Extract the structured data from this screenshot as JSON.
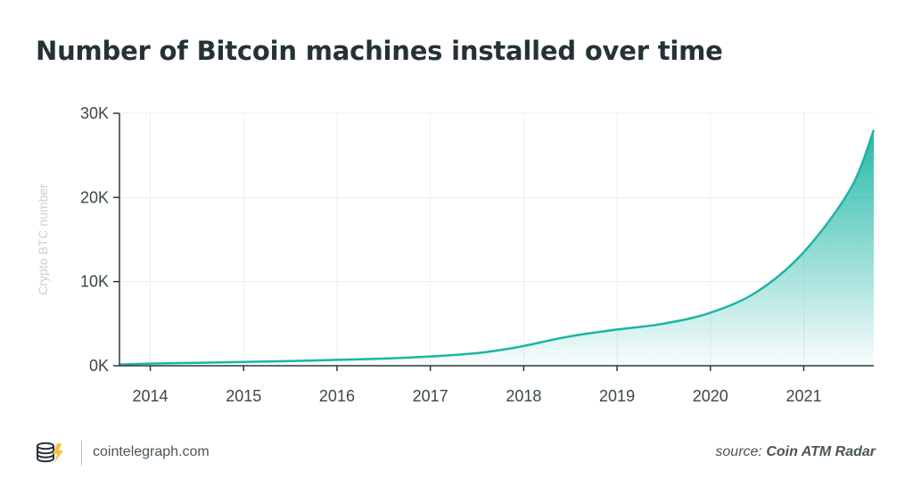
{
  "chart_data": {
    "type": "area",
    "title": "Number of Bitcoin machines installed over time",
    "ylabel": "Crypto BTC number",
    "xlabel": "",
    "x_ticks": [
      "2014",
      "2015",
      "2016",
      "2017",
      "2018",
      "2019",
      "2020",
      "2021"
    ],
    "y_ticks": [
      "0K",
      "10K",
      "20K",
      "30K"
    ],
    "xlim": [
      2013.67,
      2021.75
    ],
    "ylim": [
      0,
      30000
    ],
    "grid": true,
    "series": [
      {
        "color": "#1bb5a4",
        "x": [
          2013.67,
          2014.0,
          2014.5,
          2015.0,
          2015.5,
          2016.0,
          2016.5,
          2017.0,
          2017.5,
          2017.83,
          2018.0,
          2018.5,
          2019.0,
          2019.5,
          2020.0,
          2020.5,
          2021.0,
          2021.5,
          2021.75
        ],
        "y": [
          150,
          250,
          350,
          450,
          550,
          700,
          850,
          1100,
          1500,
          2000,
          2350,
          3500,
          4300,
          5000,
          6300,
          8800,
          13500,
          21000,
          28000
        ]
      }
    ]
  },
  "footer": {
    "site": "cointelegraph.com",
    "source_prefix": "source:",
    "source_name": "Coin ATM Radar"
  },
  "colors": {
    "accent": "#1bb5a4",
    "title": "#243238",
    "axis": "#2b3a40",
    "grid": "#ebeeee",
    "ylabel": "#c8d0d1"
  }
}
